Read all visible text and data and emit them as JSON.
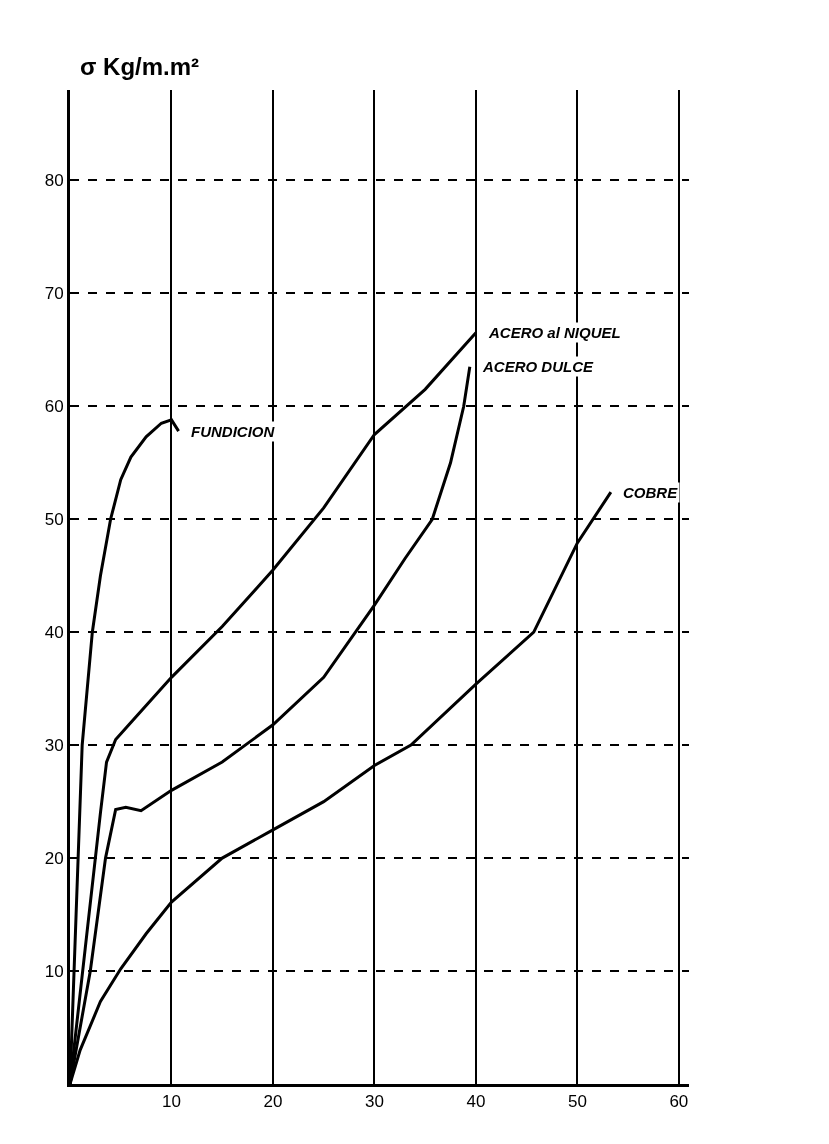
{
  "chart_data": {
    "type": "line",
    "ylabel": "σ Kg/m.m²",
    "xlim": [
      0,
      61
    ],
    "ylim": [
      0,
      88
    ],
    "xticks": [
      10,
      20,
      30,
      40,
      50,
      60
    ],
    "yticks": [
      10,
      20,
      30,
      40,
      50,
      60,
      70,
      80
    ],
    "grid": true,
    "legend": false,
    "marker": "none",
    "line_style": "solid",
    "series": [
      {
        "name": "FUNDICION",
        "color": "#000000",
        "x": [
          0,
          0.6,
          1.2,
          2.2,
          3,
          4,
          5,
          6,
          7.5,
          9,
          10,
          10.7
        ],
        "values": [
          0,
          15,
          30,
          40,
          45,
          50,
          53.5,
          55.5,
          57.3,
          58.5,
          58.8,
          57.8
        ]
      },
      {
        "name": "ACERO al NIQUEL",
        "color": "#000000",
        "x": [
          0,
          1.5,
          3,
          3.6,
          4.5,
          6,
          10,
          15,
          20,
          25,
          30,
          35,
          40
        ],
        "values": [
          0,
          12,
          24,
          28.5,
          30.5,
          32,
          36,
          40.5,
          45.5,
          51,
          57.5,
          61.5,
          66.5
        ]
      },
      {
        "name": "ACERO DULCE",
        "color": "#000000",
        "x": [
          0,
          2,
          3.5,
          4.5,
          5.5,
          7,
          10,
          15,
          20,
          25,
          30,
          33,
          35.7,
          37.5,
          38.8,
          39.4
        ],
        "values": [
          0,
          10,
          20,
          24.3,
          24.5,
          24.2,
          26,
          28.5,
          31.8,
          36,
          42.4,
          46.5,
          50,
          55,
          60,
          63.5
        ]
      },
      {
        "name": "COBRE",
        "color": "#000000",
        "x": [
          0,
          1,
          3,
          5,
          7.5,
          10,
          15,
          20,
          25,
          30,
          33.6,
          40,
          45.7,
          50,
          53.3
        ],
        "values": [
          0,
          3,
          7.3,
          10.2,
          13.3,
          16.1,
          20,
          22.5,
          25,
          28.2,
          30,
          35.4,
          40,
          47.9,
          52.4
        ]
      }
    ]
  }
}
